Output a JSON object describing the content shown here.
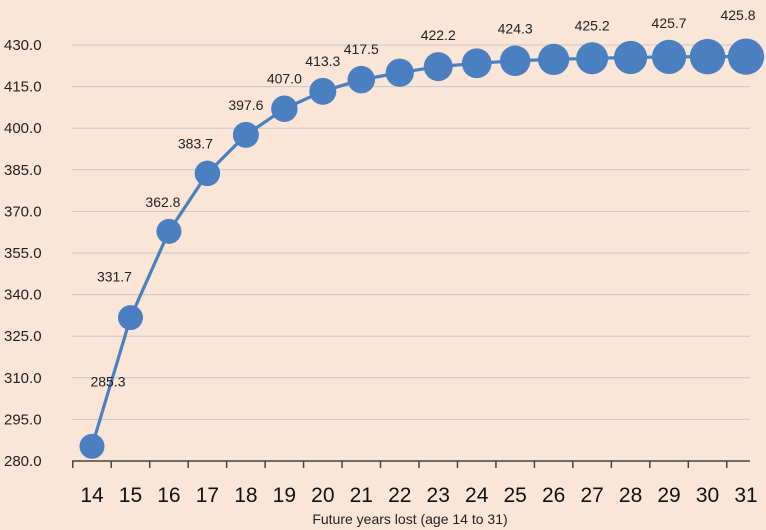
{
  "chart_data": {
    "type": "line",
    "title": "",
    "xlabel": "Future years lost (age 14 to 31)",
    "ylabel": "",
    "x": [
      14,
      15,
      16,
      17,
      18,
      19,
      20,
      21,
      22,
      23,
      24,
      25,
      26,
      27,
      28,
      29,
      30,
      31
    ],
    "series": [
      {
        "values": [
          285.3,
          331.7,
          362.8,
          383.7,
          397.6,
          407.0,
          413.3,
          417.5,
          420.0,
          422.2,
          423.4,
          424.3,
          424.8,
          425.2,
          425.5,
          425.7,
          425.8,
          425.8
        ],
        "labels": [
          "285.3",
          "331.7",
          "362.8",
          "383.7",
          "397.6",
          "407.0",
          "413.3",
          "417.5",
          "",
          "422.2",
          "",
          "424.3",
          "",
          "425.2",
          "",
          "425.7",
          "",
          "425.8"
        ],
        "marker_size_relative": [
          1.0,
          1.0,
          1.0,
          1.02,
          1.04,
          1.06,
          1.08,
          1.1,
          1.13,
          1.16,
          1.19,
          1.22,
          1.25,
          1.28,
          1.33,
          1.37,
          1.42,
          1.45
        ]
      }
    ],
    "ylim": [
      280.0,
      430.0
    ],
    "yticks": [
      "280.0",
      "295.0",
      "310.0",
      "325.0",
      "340.0",
      "355.0",
      "370.0",
      "385.0",
      "400.0",
      "415.0",
      "430.0"
    ],
    "grid": true,
    "legend": "none",
    "colors": {
      "series": "#4a7fc1",
      "background": "#fbe5d6",
      "grid": "#c8c8c8"
    }
  }
}
